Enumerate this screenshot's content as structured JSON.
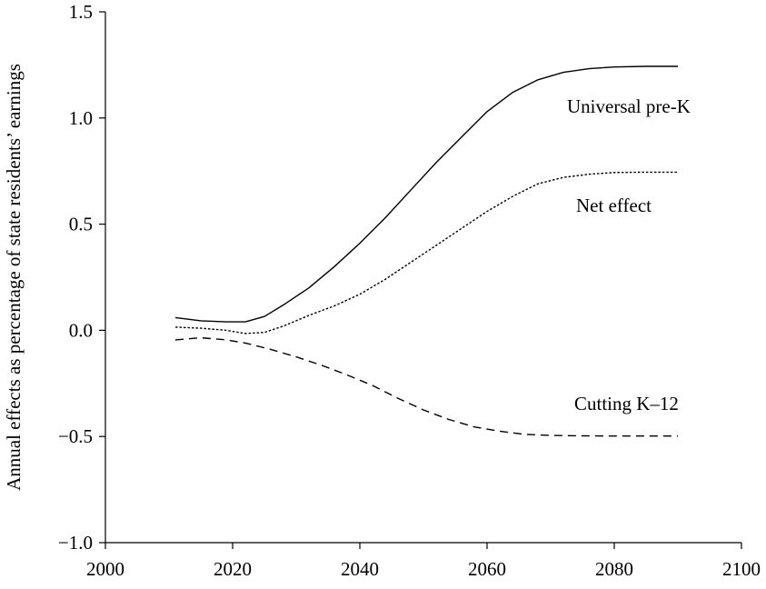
{
  "chart_data": {
    "type": "line",
    "title": "",
    "xlabel": "",
    "ylabel": "Annual effects as percentage of state residents’ earnings",
    "xlim": [
      2000,
      2100
    ],
    "ylim": [
      -1.0,
      1.5
    ],
    "xticks": [
      2000,
      2020,
      2040,
      2060,
      2080,
      2100
    ],
    "yticks": [
      1.5,
      1.0,
      0.5,
      0.0,
      -0.5,
      -1.0
    ],
    "xtick_labels": [
      "2000",
      "2020",
      "2040",
      "2060",
      "2080",
      "2100"
    ],
    "ytick_labels": [
      "1.5",
      "1.0",
      "0.5",
      "0.0",
      "−0.5",
      "−1.0"
    ],
    "grid": false,
    "legend": "none (series labeled directly on the plot)",
    "series": [
      {
        "name": "Universal pre-K",
        "line_style": "solid",
        "color": "#000000",
        "points": [
          [
            2011,
            0.06
          ],
          [
            2015,
            0.045
          ],
          [
            2019,
            0.04
          ],
          [
            2022,
            0.04
          ],
          [
            2025,
            0.065
          ],
          [
            2028,
            0.12
          ],
          [
            2032,
            0.2
          ],
          [
            2036,
            0.3
          ],
          [
            2040,
            0.41
          ],
          [
            2044,
            0.53
          ],
          [
            2048,
            0.66
          ],
          [
            2052,
            0.79
          ],
          [
            2056,
            0.91
          ],
          [
            2060,
            1.03
          ],
          [
            2064,
            1.12
          ],
          [
            2068,
            1.18
          ],
          [
            2072,
            1.215
          ],
          [
            2076,
            1.232
          ],
          [
            2080,
            1.24
          ],
          [
            2085,
            1.243
          ],
          [
            2090,
            1.243
          ]
        ]
      },
      {
        "name": "Net effect",
        "line_style": "dotted",
        "color": "#000000",
        "points": [
          [
            2011,
            0.015
          ],
          [
            2015,
            0.01
          ],
          [
            2019,
            0.0
          ],
          [
            2022,
            -0.015
          ],
          [
            2025,
            -0.01
          ],
          [
            2028,
            0.02
          ],
          [
            2032,
            0.07
          ],
          [
            2036,
            0.115
          ],
          [
            2040,
            0.17
          ],
          [
            2044,
            0.24
          ],
          [
            2048,
            0.32
          ],
          [
            2052,
            0.4
          ],
          [
            2056,
            0.48
          ],
          [
            2060,
            0.56
          ],
          [
            2064,
            0.63
          ],
          [
            2068,
            0.69
          ],
          [
            2072,
            0.72
          ],
          [
            2076,
            0.735
          ],
          [
            2080,
            0.743
          ],
          [
            2085,
            0.745
          ],
          [
            2090,
            0.745
          ]
        ]
      },
      {
        "name": "Cutting K–12",
        "line_style": "dashed",
        "color": "#000000",
        "points": [
          [
            2011,
            -0.045
          ],
          [
            2015,
            -0.035
          ],
          [
            2019,
            -0.045
          ],
          [
            2022,
            -0.06
          ],
          [
            2026,
            -0.09
          ],
          [
            2030,
            -0.125
          ],
          [
            2034,
            -0.165
          ],
          [
            2038,
            -0.21
          ],
          [
            2042,
            -0.26
          ],
          [
            2046,
            -0.32
          ],
          [
            2050,
            -0.375
          ],
          [
            2054,
            -0.42
          ],
          [
            2058,
            -0.455
          ],
          [
            2062,
            -0.475
          ],
          [
            2066,
            -0.49
          ],
          [
            2070,
            -0.495
          ],
          [
            2075,
            -0.497
          ],
          [
            2080,
            -0.498
          ],
          [
            2085,
            -0.498
          ],
          [
            2090,
            -0.498
          ]
        ]
      }
    ]
  }
}
